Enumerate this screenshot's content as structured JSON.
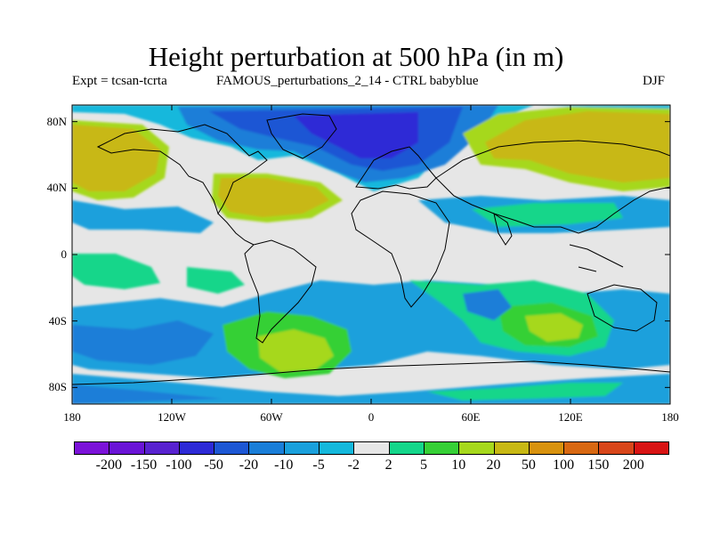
{
  "header": {
    "title": "Height perturbation at 500 hPa (in m)",
    "expt": "Expt = tcsan-tcrta",
    "run": "FAMOUS_perturbations_2_14 - CTRL babyblue",
    "season": "DJF"
  },
  "map": {
    "projection": "cylindrical equidistant",
    "lon_range": [
      -180,
      180
    ],
    "lat_range": [
      -90,
      90
    ],
    "lat_ticks": [
      {
        "value": 80,
        "label": "80N"
      },
      {
        "value": 40,
        "label": "40N"
      },
      {
        "value": 0,
        "label": "0"
      },
      {
        "value": -40,
        "label": "40S"
      },
      {
        "value": -80,
        "label": "80S"
      }
    ],
    "lon_ticks": [
      {
        "value": -180,
        "label": "180"
      },
      {
        "value": -120,
        "label": "120W"
      },
      {
        "value": -60,
        "label": "60W"
      },
      {
        "value": 0,
        "label": "0"
      },
      {
        "value": 60,
        "label": "60E"
      },
      {
        "value": 120,
        "label": "120E"
      },
      {
        "value": 180,
        "label": "180"
      }
    ]
  },
  "legend": {
    "labels": [
      "-200",
      "-150",
      "-100",
      "-50",
      "-20",
      "-10",
      "-5",
      "-2",
      "2",
      "5",
      "10",
      "20",
      "50",
      "100",
      "150",
      "200"
    ],
    "colors": [
      "#7b12d8",
      "#6a14d6",
      "#5822cf",
      "#2d2ad6",
      "#1d57d4",
      "#1a7ed8",
      "#1aa0dc",
      "#14b8dc",
      "#e6e6e6",
      "#14d68a",
      "#36d036",
      "#a6d81c",
      "#c8b814",
      "#d8920e",
      "#d86812",
      "#d8461a",
      "#d81414"
    ]
  },
  "chart_data": {
    "type": "heatmap",
    "title": "Height perturbation at 500 hPa (in m)",
    "units": "m",
    "contour_levels": [
      -200,
      -150,
      -100,
      -50,
      -20,
      -10,
      -5,
      -2,
      2,
      5,
      10,
      20,
      50,
      100,
      150,
      200
    ],
    "features": [
      {
        "region": "North Atlantic / Greenland to Scandinavia",
        "approx_value": -50
      },
      {
        "region": "Canada / Hudson Bay",
        "approx_value": -20
      },
      {
        "region": "North Pacific",
        "approx_value": 50
      },
      {
        "region": "Eastern USA / western Atlantic",
        "approx_value": 50
      },
      {
        "region": "Eurasia / Siberia",
        "approx_value": 50
      },
      {
        "region": "South of South America",
        "approx_value": 20
      },
      {
        "region": "Southern Indian Ocean",
        "approx_value": 10
      },
      {
        "region": "Tropics",
        "approx_value": 0
      }
    ]
  }
}
